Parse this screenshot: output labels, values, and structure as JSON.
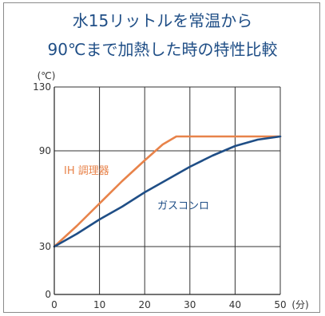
{
  "chart_data": {
    "type": "line",
    "title": "水15リットルを常温から",
    "subtitle": "90℃まで加熱した時の特性比較",
    "ylabel": "(℃)",
    "xlabel": "(分)",
    "xlim": [
      0,
      50
    ],
    "ylim": [
      0,
      130
    ],
    "x_ticks": [
      0,
      10,
      20,
      30,
      40,
      50
    ],
    "x_tick_labels": [
      "0",
      "10",
      "20",
      "30",
      "40",
      "50"
    ],
    "y_ticks": [
      0,
      30,
      90,
      130
    ],
    "y_tick_labels": [
      "0",
      "30",
      "90",
      "130"
    ],
    "grid": true,
    "series": [
      {
        "name": "IH 調理器",
        "color": "#e8834a",
        "x": [
          0,
          5,
          10,
          15,
          20,
          24,
          27,
          30,
          35,
          40,
          45,
          50
        ],
        "y": [
          30,
          43,
          57,
          71,
          84,
          94,
          99,
          99,
          99,
          99,
          99,
          99
        ]
      },
      {
        "name": "ガスコンロ",
        "color": "#1f4e86",
        "x": [
          0,
          5,
          10,
          15,
          20,
          25,
          30,
          35,
          40,
          45,
          50
        ],
        "y": [
          30,
          38,
          47,
          55,
          64,
          72,
          80,
          87,
          93,
          97,
          99
        ]
      }
    ]
  }
}
